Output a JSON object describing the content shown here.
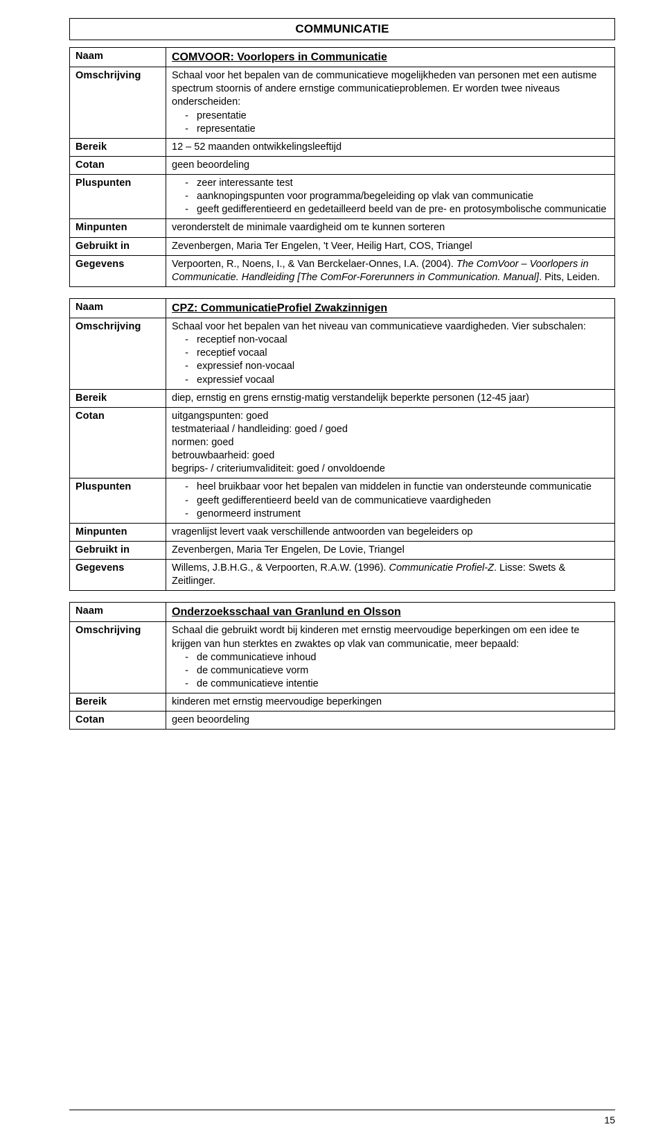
{
  "page": {
    "section_title": "COMMUNICATIE",
    "page_number": "15",
    "labels": {
      "naam": "Naam",
      "omschrijving": "Omschrijving",
      "bereik": "Bereik",
      "cotan": "Cotan",
      "pluspunten": "Pluspunten",
      "minpunten": "Minpunten",
      "gebruikt_in": "Gebruikt in",
      "gegevens": "Gegevens"
    },
    "entries": [
      {
        "naam": "COMVOOR: Voorlopers in Communicatie",
        "omschrijving_intro": "Schaal voor het bepalen van de communicatieve mogelijkheden van personen met een autisme spectrum stoornis of andere ernstige communicatieproblemen. Er worden twee niveaus onderscheiden:",
        "omschrijving_items": [
          "presentatie",
          "representatie"
        ],
        "bereik": "12 – 52 maanden ontwikkelingsleeftijd",
        "cotan": "geen beoordeling",
        "pluspunten": [
          "zeer interessante test",
          "aanknopingspunten voor programma/begeleiding op vlak van communicatie",
          "geeft gedifferentieerd en gedetailleerd beeld van de pre- en protosymbolische communicatie"
        ],
        "minpunten": "veronderstelt de minimale vaardigheid om te kunnen sorteren",
        "gebruikt_in": "Zevenbergen, Maria Ter Engelen, 't Veer, Heilig Hart, COS, Triangel",
        "gegevens_a": "Verpoorten, R., Noens, I., & Van Berckelaer-Onnes, I.A. (2004). ",
        "gegevens_b": "The ComVoor – Voorlopers in Communicatie. Handleiding [The ComFor-Forerunners in Communication. Manual]",
        "gegevens_c": ". Pits, Leiden."
      },
      {
        "naam": "CPZ: CommunicatieProfiel Zwakzinnigen",
        "omschrijving_intro": "Schaal voor het bepalen van het niveau van communicatieve vaardigheden. Vier subschalen:",
        "omschrijving_items": [
          "receptief non-vocaal",
          "receptief vocaal",
          "expressief non-vocaal",
          "expressief vocaal"
        ],
        "bereik": "diep, ernstig en grens ernstig-matig verstandelijk beperkte personen (12-45 jaar)",
        "cotan_lines": [
          "uitgangspunten: goed",
          "testmateriaal / handleiding: goed / goed",
          "normen: goed",
          "betrouwbaarheid: goed",
          "begrips- / criteriumvaliditeit: goed / onvoldoende"
        ],
        "pluspunten": [
          "heel bruikbaar voor het bepalen van middelen in functie van ondersteunde communicatie",
          "geeft gedifferentieerd beeld van de communicatieve vaardigheden",
          "genormeerd instrument"
        ],
        "minpunten": "vragenlijst levert vaak verschillende antwoorden van begeleiders op",
        "gebruikt_in": "Zevenbergen, Maria Ter Engelen, De Lovie, Triangel",
        "gegevens_a": "Willems, J.B.H.G., & Verpoorten, R.A.W. (1996). ",
        "gegevens_b": "Communicatie Profiel-Z",
        "gegevens_c": ". Lisse: Swets & Zeitlinger."
      },
      {
        "naam": "Onderzoeksschaal van Granlund en Olsson",
        "omschrijving_intro": "Schaal die gebruikt wordt bij kinderen met ernstig meervoudige beperkingen om een idee te krijgen van hun sterktes en zwaktes op vlak van communicatie, meer bepaald:",
        "omschrijving_items": [
          "de communicatieve inhoud",
          "de communicatieve vorm",
          "de communicatieve intentie"
        ],
        "bereik": "kinderen met ernstig meervoudige beperkingen",
        "cotan": "geen beoordeling"
      }
    ]
  }
}
